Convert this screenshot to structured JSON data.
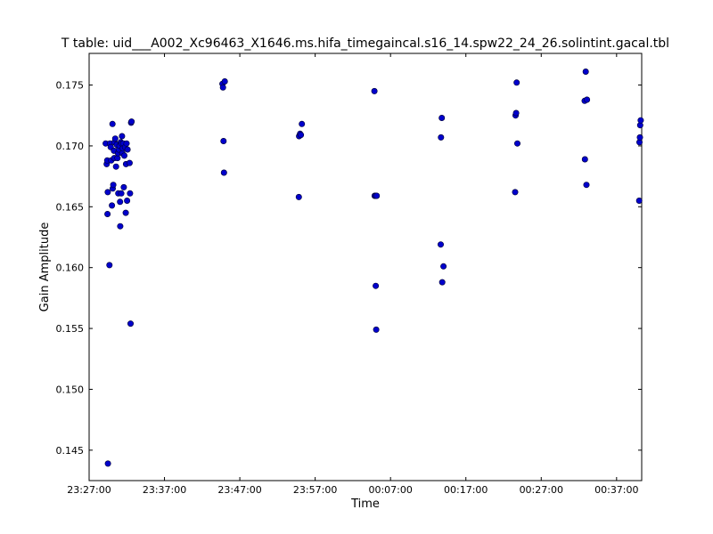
{
  "chart_data": {
    "type": "scatter",
    "title": "T table: uid___A002_Xc96463_X1646.ms.hifa_timegaincal.s16_14.spw22_24_26.solintint.gacal.tbl",
    "xlabel": "Time",
    "ylabel": "Gain Amplitude",
    "x_ticks": [
      "23:27:00",
      "23:37:00",
      "23:47:00",
      "23:57:00",
      "00:07:00",
      "00:17:00",
      "00:27:00",
      "00:37:00"
    ],
    "y_ticks": [
      "0.145",
      "0.150",
      "0.155",
      "0.160",
      "0.165",
      "0.170",
      "0.175"
    ],
    "xlim": [
      "23:27:00",
      "00:40:20"
    ],
    "ylim": [
      0.1425,
      0.1776
    ],
    "grid": false,
    "marker_color": "#0000cc",
    "points": [
      [
        "23:29:12",
        0.1702
      ],
      [
        "23:29:20",
        0.1685
      ],
      [
        "23:29:24",
        0.1688
      ],
      [
        "23:29:26",
        0.1644
      ],
      [
        "23:29:28",
        0.1662
      ],
      [
        "23:29:30",
        0.1439
      ],
      [
        "23:29:42",
        0.1602
      ],
      [
        "23:29:46",
        0.1702
      ],
      [
        "23:29:52",
        0.1699
      ],
      [
        "23:29:56",
        0.1688
      ],
      [
        "23:30:02",
        0.1651
      ],
      [
        "23:30:06",
        0.1718
      ],
      [
        "23:30:08",
        0.1665
      ],
      [
        "23:30:12",
        0.1668
      ],
      [
        "23:30:18",
        0.1696
      ],
      [
        "23:30:20",
        0.169
      ],
      [
        "23:30:22",
        0.1703
      ],
      [
        "23:30:28",
        0.1706
      ],
      [
        "23:30:34",
        0.1683
      ],
      [
        "23:30:40",
        0.1701
      ],
      [
        "23:30:46",
        0.169
      ],
      [
        "23:30:50",
        0.1694
      ],
      [
        "23:30:52",
        0.1661
      ],
      [
        "23:30:56",
        0.1697
      ],
      [
        "23:31:02",
        0.17
      ],
      [
        "23:31:06",
        0.1654
      ],
      [
        "23:31:08",
        0.1634
      ],
      [
        "23:31:12",
        0.1703
      ],
      [
        "23:31:16",
        0.1661
      ],
      [
        "23:31:18",
        0.1702
      ],
      [
        "23:31:22",
        0.1708
      ],
      [
        "23:31:24",
        0.1694
      ],
      [
        "23:31:28",
        0.1698
      ],
      [
        "23:31:32",
        0.1702
      ],
      [
        "23:31:36",
        0.1666
      ],
      [
        "23:31:40",
        0.1692
      ],
      [
        "23:31:46",
        0.1699
      ],
      [
        "23:31:52",
        0.1645
      ],
      [
        "23:31:54",
        0.1685
      ],
      [
        "23:31:58",
        0.1702
      ],
      [
        "23:32:02",
        0.1655
      ],
      [
        "23:32:06",
        0.1697
      ],
      [
        "23:32:22",
        0.1686
      ],
      [
        "23:32:26",
        0.1661
      ],
      [
        "23:32:30",
        0.1554
      ],
      [
        "23:32:34",
        0.1719
      ],
      [
        "23:32:38",
        0.172
      ],
      [
        "23:44:42",
        0.1751
      ],
      [
        "23:44:46",
        0.1748
      ],
      [
        "23:44:50",
        0.1704
      ],
      [
        "23:44:54",
        0.1678
      ],
      [
        "23:45:00",
        0.1753
      ],
      [
        "23:54:50",
        0.1658
      ],
      [
        "23:54:52",
        0.1708
      ],
      [
        "23:55:00",
        0.171
      ],
      [
        "23:55:06",
        0.1709
      ],
      [
        "23:55:14",
        0.1718
      ],
      [
        "00:04:52",
        0.1745
      ],
      [
        "00:04:54",
        0.1659
      ],
      [
        "00:05:00",
        0.1659
      ],
      [
        "00:05:02",
        0.1585
      ],
      [
        "00:05:06",
        0.1549
      ],
      [
        "00:05:10",
        0.1659
      ],
      [
        "00:13:40",
        0.1619
      ],
      [
        "00:13:42",
        0.1707
      ],
      [
        "00:13:48",
        0.1723
      ],
      [
        "00:13:52",
        0.1588
      ],
      [
        "00:14:02",
        0.1601
      ],
      [
        "00:23:32",
        0.1662
      ],
      [
        "00:23:36",
        0.1725
      ],
      [
        "00:23:40",
        0.1727
      ],
      [
        "00:23:44",
        0.1752
      ],
      [
        "00:23:50",
        0.1702
      ],
      [
        "00:32:46",
        0.1737
      ],
      [
        "00:32:48",
        0.1689
      ],
      [
        "00:32:54",
        0.1761
      ],
      [
        "00:33:00",
        0.1668
      ],
      [
        "00:33:04",
        0.1738
      ],
      [
        "00:40:00",
        0.1655
      ],
      [
        "00:40:02",
        0.1703
      ],
      [
        "00:40:06",
        0.1707
      ],
      [
        "00:40:08",
        0.1717
      ],
      [
        "00:40:12",
        0.1721
      ]
    ]
  }
}
